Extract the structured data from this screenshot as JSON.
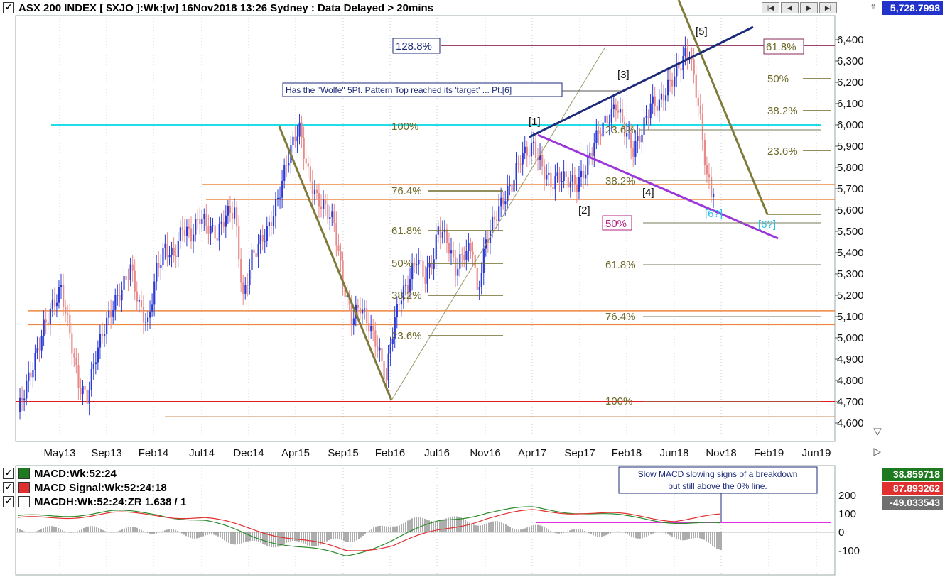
{
  "header": {
    "title": "ASX 200 INDEX [ $XJO ]:Wk:[w]   16Nov2018 13:26 Sydney : Data Delayed > 20mins",
    "last_price": "5,728.7998",
    "nav_buttons": [
      "|◀",
      "◀",
      "▶",
      "▶|"
    ]
  },
  "indicators": [
    {
      "label": "MACD:Wk:52:24",
      "value": "38.859718",
      "color": "#1e7a1e"
    },
    {
      "label": "MACD Signal:Wk:52:24:18",
      "value": "87.893262",
      "color": "#e03030"
    },
    {
      "label": "MACDH:Wk:52:24:ZR 1.638 / 1",
      "value": "-49.033543",
      "color": "#707070"
    }
  ],
  "chart_data": {
    "type": "candlestick",
    "x_ticks": [
      "May13",
      "Sep13",
      "Feb14",
      "Jul14",
      "Dec14",
      "Apr15",
      "Sep15",
      "Feb16",
      "Jul16",
      "Nov16",
      "Apr17",
      "Sep17",
      "Feb18",
      "Jun18",
      "Nov18",
      "Feb19",
      "Jun19"
    ],
    "y_ticks": [
      "6,400",
      "6,300",
      "6,200",
      "6,100",
      "6,000",
      "5,900",
      "5,800",
      "5,700",
      "5,600",
      "5,500",
      "5,400",
      "5,300",
      "5,200",
      "5,100",
      "5,000",
      "4,900",
      "4,800",
      "4,700",
      "4,600"
    ],
    "ylim": [
      4560,
      6460
    ],
    "price_path": [
      [
        0,
        4650
      ],
      [
        4,
        4780
      ],
      [
        8,
        4900
      ],
      [
        12,
        5050
      ],
      [
        16,
        5150
      ],
      [
        20,
        5230
      ],
      [
        24,
        5020
      ],
      [
        28,
        4780
      ],
      [
        32,
        4720
      ],
      [
        36,
        4920
      ],
      [
        40,
        5050
      ],
      [
        44,
        5150
      ],
      [
        48,
        5230
      ],
      [
        52,
        5330
      ],
      [
        56,
        5150
      ],
      [
        60,
        5060
      ],
      [
        64,
        5320
      ],
      [
        68,
        5420
      ],
      [
        72,
        5380
      ],
      [
        76,
        5520
      ],
      [
        80,
        5480
      ],
      [
        84,
        5570
      ],
      [
        88,
        5520
      ],
      [
        92,
        5480
      ],
      [
        96,
        5580
      ],
      [
        100,
        5600
      ],
      [
        104,
        5180
      ],
      [
        108,
        5380
      ],
      [
        112,
        5450
      ],
      [
        116,
        5520
      ],
      [
        120,
        5650
      ],
      [
        124,
        5820
      ],
      [
        128,
        5950
      ],
      [
        130,
        5980
      ],
      [
        134,
        5770
      ],
      [
        138,
        5650
      ],
      [
        142,
        5610
      ],
      [
        146,
        5540
      ],
      [
        150,
        5260
      ],
      [
        154,
        5090
      ],
      [
        158,
        5150
      ],
      [
        162,
        5060
      ],
      [
        166,
        4960
      ],
      [
        170,
        4800
      ],
      [
        172,
        4980
      ],
      [
        176,
        5180
      ],
      [
        180,
        5250
      ],
      [
        184,
        5380
      ],
      [
        188,
        5280
      ],
      [
        192,
        5380
      ],
      [
        194,
        5520
      ],
      [
        198,
        5460
      ],
      [
        202,
        5320
      ],
      [
        206,
        5400
      ],
      [
        210,
        5420
      ],
      [
        212,
        5200
      ],
      [
        216,
        5450
      ],
      [
        220,
        5560
      ],
      [
        224,
        5650
      ],
      [
        228,
        5720
      ],
      [
        232,
        5850
      ],
      [
        236,
        5880
      ],
      [
        238,
        5900
      ],
      [
        242,
        5800
      ],
      [
        246,
        5720
      ],
      [
        250,
        5760
      ],
      [
        254,
        5740
      ],
      [
        258,
        5720
      ],
      [
        262,
        5790
      ],
      [
        266,
        5920
      ],
      [
        270,
        6000
      ],
      [
        274,
        6050
      ],
      [
        276,
        6100
      ],
      [
        280,
        5980
      ],
      [
        284,
        5880
      ],
      [
        288,
        5970
      ],
      [
        292,
        6100
      ],
      [
        296,
        6100
      ],
      [
        300,
        6180
      ],
      [
        304,
        6250
      ],
      [
        308,
        6330
      ],
      [
        310,
        6340
      ],
      [
        314,
        6100
      ],
      [
        318,
        5760
      ],
      [
        320,
        5680
      ],
      [
        322,
        5730
      ]
    ],
    "series": [
      {
        "name": "MACD:Wk:52:24",
        "values": [
          80,
          95,
          110,
          100,
          60,
          -20,
          -80,
          -130,
          -40,
          60,
          110,
          130,
          110,
          80,
          60,
          38.86
        ]
      },
      {
        "name": "MACD Signal:Wk:52:24:18",
        "values": [
          70,
          85,
          100,
          95,
          75,
          20,
          -40,
          -100,
          -70,
          10,
          80,
          115,
          110,
          90,
          70,
          87.89
        ]
      }
    ],
    "macd_yticks": [
      "200",
      "100",
      "0",
      "-100"
    ],
    "annotations": {
      "fib_top_left": [
        "100%",
        "76.4%",
        "61.8%",
        "50%",
        "38.2%",
        "23.6%"
      ],
      "fib_mid": [
        "23.6%",
        "38.2%",
        "50%",
        "61.8%",
        "76.4%",
        "100%"
      ],
      "fib_right": [
        "61.8%",
        "50%",
        "38.2%",
        "23.6%"
      ],
      "ext_label": "128.8%",
      "waves": [
        "[1]",
        "[2]",
        "[3]",
        "[4]",
        "[5]",
        "[6?]",
        "[6?]"
      ],
      "note1": "Has the \"Wolfe\" 5Pt.  Pattern Top reached its 'target' ... Pt.[6]",
      "note2_line1": "Slow MACD slowing signs of a breakdown",
      "note2_line2": "but still above the 0% line."
    }
  }
}
